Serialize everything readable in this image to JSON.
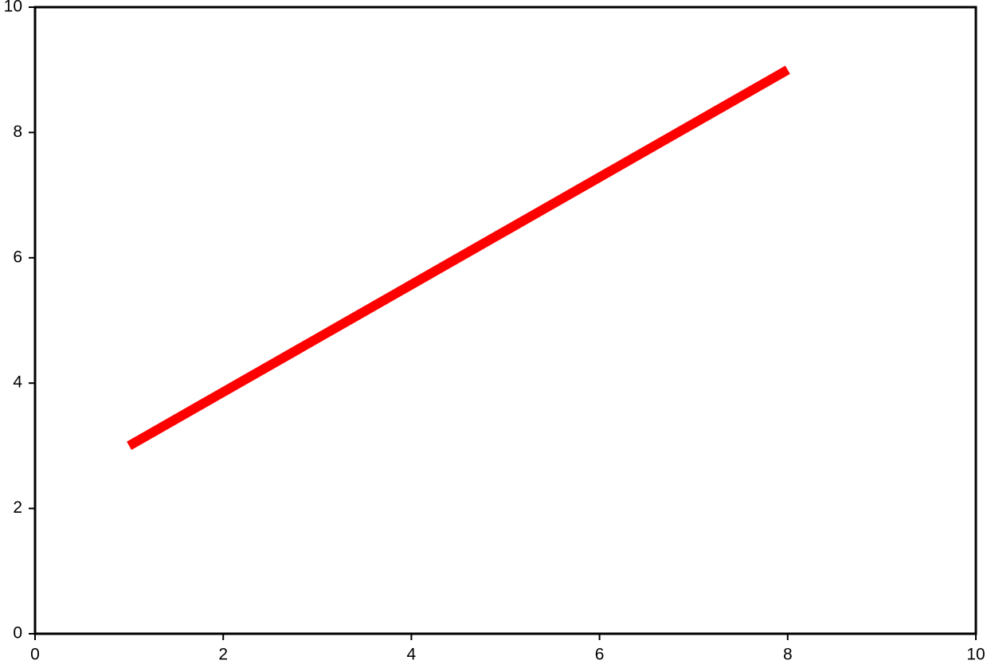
{
  "chart_data": {
    "type": "line",
    "x": [
      1,
      8
    ],
    "series": [
      {
        "color": "#ff0000",
        "values": [
          3,
          9
        ]
      }
    ],
    "xlim": [
      0,
      10
    ],
    "ylim": [
      0,
      10
    ],
    "xticks": [
      0,
      2,
      4,
      6,
      8,
      10
    ],
    "yticks": [
      0,
      2,
      4,
      6,
      8,
      10
    ],
    "grid": false
  }
}
